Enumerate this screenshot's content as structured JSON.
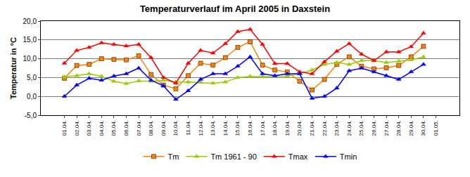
{
  "chart_data": {
    "type": "line",
    "title": "Temperaturverlauf im April 2005 in Daxstein",
    "y_label": "Temperatur in °C",
    "categories": [
      "01.04.",
      "02.04.",
      "03.04.",
      "04.04.",
      "05.04.",
      "06.04.",
      "07.04.",
      "08.04.",
      "09.04.",
      "10.04.",
      "11.04.",
      "12.04.",
      "13.04.",
      "14.04.",
      "15.04.",
      "16.04.",
      "17.04.",
      "18.04.",
      "19.04.",
      "20.04.",
      "21.04.",
      "22.04.",
      "23.04.",
      "24.04.",
      "25.04.",
      "26.04.",
      "27.04.",
      "28.04.",
      "29.04.",
      "30.04.",
      "01.05."
    ],
    "series": [
      {
        "name": "Tm",
        "color": "#ff8000",
        "marker": "square",
        "values": [
          4.8,
          8.2,
          8.5,
          10.0,
          9.8,
          9.7,
          10.8,
          5.8,
          3.0,
          2.0,
          5.5,
          8.8,
          8.3,
          10.3,
          13.0,
          14.5,
          8.3,
          7.0,
          6.5,
          4.0,
          1.7,
          4.5,
          8.5,
          10.5,
          8.0,
          7.3,
          7.6,
          8.2,
          10.5,
          13.3,
          null
        ]
      },
      {
        "name": "Tm 1961 - 90",
        "color": "#99cc00",
        "marker": "triangle-up",
        "values": [
          5.2,
          5.5,
          6.0,
          5.3,
          4.0,
          3.4,
          4.1,
          4.0,
          4.3,
          3.8,
          3.8,
          3.7,
          3.5,
          3.8,
          5.0,
          5.3,
          5.2,
          5.3,
          5.4,
          6.0,
          7.0,
          8.5,
          9.0,
          8.5,
          9.5,
          9.5,
          9.0,
          9.3,
          9.7,
          10.5,
          null
        ]
      },
      {
        "name": "Tmax",
        "color": "#ff0000",
        "marker": "triangle-up",
        "values": [
          8.8,
          12.2,
          13.0,
          14.2,
          13.8,
          13.4,
          13.8,
          10.3,
          5.0,
          3.5,
          8.8,
          12.2,
          11.5,
          14.0,
          17.2,
          17.8,
          13.8,
          8.7,
          8.7,
          6.5,
          6.0,
          9.2,
          12.0,
          14.0,
          11.2,
          9.5,
          11.8,
          11.8,
          13.2,
          16.8,
          null
        ]
      },
      {
        "name": "Tmin",
        "color": "#0000ff",
        "marker": "triangle-up",
        "values": [
          0.0,
          3.0,
          4.8,
          4.3,
          5.4,
          6.0,
          7.5,
          4.3,
          2.8,
          -0.8,
          1.5,
          4.5,
          6.0,
          6.0,
          8.0,
          10.5,
          6.0,
          5.5,
          6.0,
          6.0,
          -0.5,
          0.0,
          2.2,
          6.8,
          7.5,
          6.5,
          5.5,
          4.5,
          6.5,
          8.5,
          null
        ]
      }
    ],
    "ylim": [
      -5,
      20
    ],
    "yticks": [
      {
        "value": -5,
        "label": "-5,0"
      },
      {
        "value": 0,
        "label": "0,0"
      },
      {
        "value": 5,
        "label": "5,0"
      },
      {
        "value": 10,
        "label": "10,0"
      },
      {
        "value": 15,
        "label": "15,0"
      },
      {
        "value": 20,
        "label": "20,0"
      }
    ],
    "grid": true,
    "legend": "bottom"
  }
}
